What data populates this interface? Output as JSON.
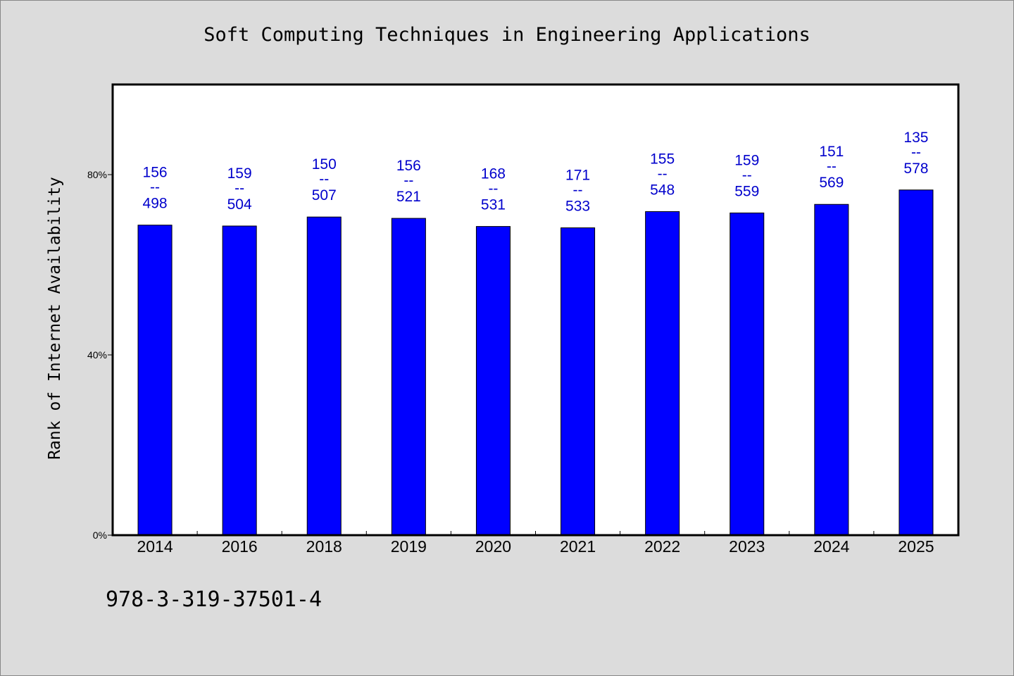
{
  "chart_data": {
    "type": "bar",
    "title": "Soft Computing Techniques in Engineering Applications",
    "ylabel": "Rank of Internet Availability",
    "xlabel": "",
    "note": "978-3-319-37501-4",
    "categories": [
      "2014",
      "2016",
      "2018",
      "2019",
      "2020",
      "2021",
      "2022",
      "2023",
      "2024",
      "2025"
    ],
    "values": [
      68.8,
      68.6,
      70.6,
      70.3,
      68.5,
      68.2,
      71.8,
      71.5,
      73.4,
      76.6
    ],
    "value_labels_top": [
      "156",
      "159",
      "150",
      "156",
      "168",
      "171",
      "155",
      "159",
      "151",
      "135"
    ],
    "value_labels_bottom": [
      "498",
      "504",
      "507",
      "521",
      "531",
      "533",
      "548",
      "559",
      "569",
      "578"
    ],
    "label_separator": "--",
    "ylim": [
      0,
      100
    ],
    "yticks": [
      0,
      40,
      80
    ],
    "ytick_labels": [
      "0%",
      "40%",
      "80%"
    ],
    "grid": false,
    "colors": {
      "bar": "#0000ff",
      "label": "#0000cc",
      "plot_bg": "#ffffff",
      "page_bg": "#dcdcdc"
    }
  }
}
